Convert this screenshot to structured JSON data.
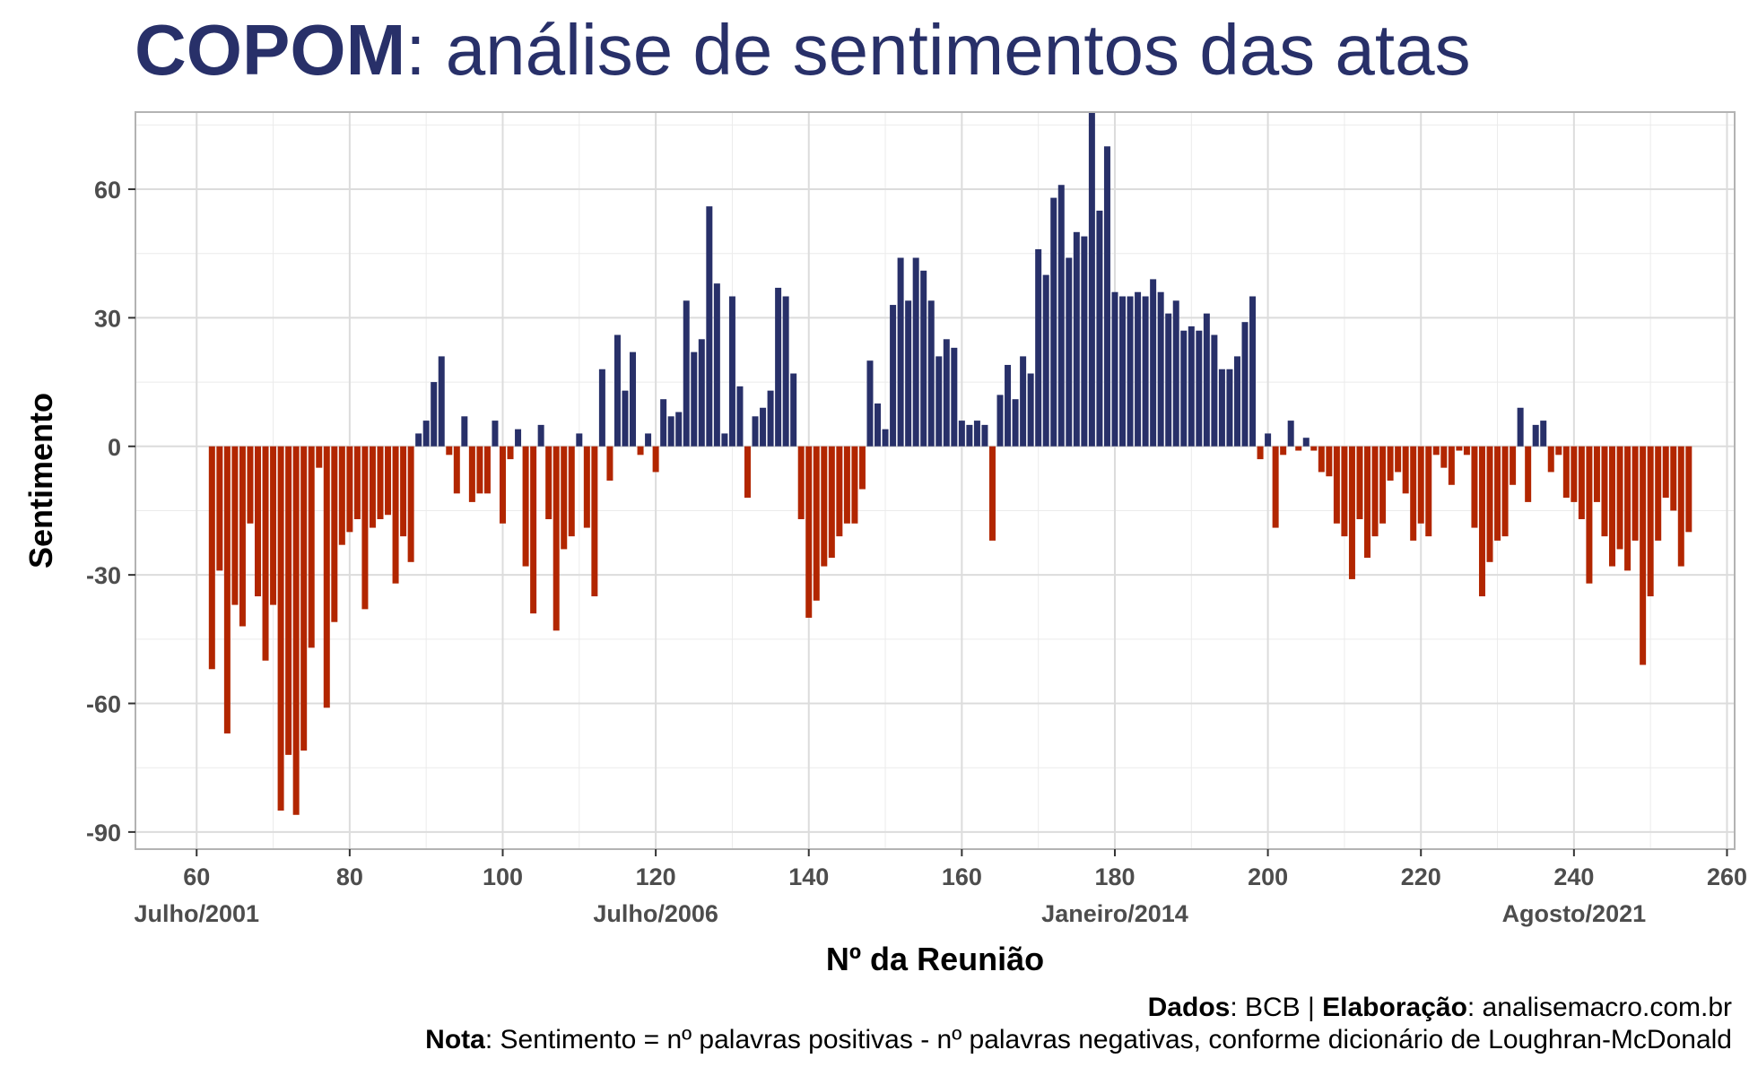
{
  "title": {
    "bold": "COPOM",
    "rest": ": análise de sentimentos das atas"
  },
  "caption": {
    "line1_b1": "Dados",
    "line1_t1": ": BCB | ",
    "line1_b2": "Elaboração",
    "line1_t2": ": analisemacro.com.br",
    "line2_b": "Nota",
    "line2_t": ": Sentimento = nº palavras positivas - nº palavras negativas, conforme dicionário de Loughran-McDonald"
  },
  "colors": {
    "positive": "#283069",
    "negative": "#B22600",
    "title": "#283069"
  },
  "chart_data": {
    "type": "bar",
    "xlabel": "Nº da Reunião",
    "ylabel": "Sentimento",
    "xlim": [
      52,
      261
    ],
    "ylim": [
      -94,
      78
    ],
    "grid": true,
    "x_ticks": [
      60,
      80,
      100,
      120,
      140,
      160,
      180,
      200,
      220,
      240,
      260
    ],
    "y_ticks": [
      -90,
      -60,
      -30,
      0,
      30,
      60
    ],
    "date_labels": [
      {
        "x": 60,
        "label": "Julho/2001"
      },
      {
        "x": 120,
        "label": "Julho/2006"
      },
      {
        "x": 180,
        "label": "Janeiro/2014"
      },
      {
        "x": 240,
        "label": "Agosto/2021"
      }
    ],
    "x_start": 62,
    "values": [
      -52,
      -29,
      -67,
      -37,
      -42,
      -18,
      -35,
      -50,
      -37,
      -85,
      -72,
      -86,
      -71,
      -47,
      -5,
      -61,
      -41,
      -23,
      -20,
      -17,
      -38,
      -19,
      -17,
      -16,
      -32,
      -21,
      -27,
      3,
      6,
      15,
      21,
      -2,
      -11,
      7,
      -13,
      -11,
      -11,
      6,
      -18,
      -3,
      4,
      -28,
      -39,
      5,
      -17,
      -43,
      -24,
      -21,
      3,
      -19,
      -35,
      18,
      -8,
      26,
      13,
      22,
      -2,
      3,
      -6,
      11,
      7,
      8,
      34,
      22,
      25,
      56,
      38,
      3,
      35,
      14,
      -12,
      7,
      9,
      13,
      37,
      35,
      17,
      -17,
      -40,
      -36,
      -28,
      -26,
      -21,
      -18,
      -18,
      -10,
      20,
      10,
      4,
      33,
      44,
      34,
      44,
      41,
      34,
      21,
      25,
      23,
      6,
      5,
      6,
      5,
      -22,
      12,
      19,
      11,
      21,
      17,
      46,
      40,
      58,
      61,
      44,
      50,
      49,
      78,
      55,
      70,
      36,
      35,
      35,
      36,
      35,
      39,
      36,
      31,
      34,
      27,
      28,
      27,
      31,
      26,
      18,
      18,
      21,
      29,
      35,
      -3,
      3,
      -19,
      -2,
      6,
      -1,
      2,
      -1,
      -6,
      -7,
      -18,
      -21,
      -31,
      -17,
      -26,
      -21,
      -18,
      -8,
      -6,
      -11,
      -22,
      -18,
      -21,
      -2,
      -5,
      -9,
      -1,
      -2,
      -19,
      -35,
      -27,
      -22,
      -21,
      -9,
      9,
      -13,
      5,
      6,
      -6,
      -2,
      -12,
      -13,
      -17,
      -32,
      -13,
      -21,
      -28,
      -24,
      -29,
      -22,
      -51,
      -35,
      -22,
      -12,
      -15,
      -28,
      -20
    ]
  }
}
